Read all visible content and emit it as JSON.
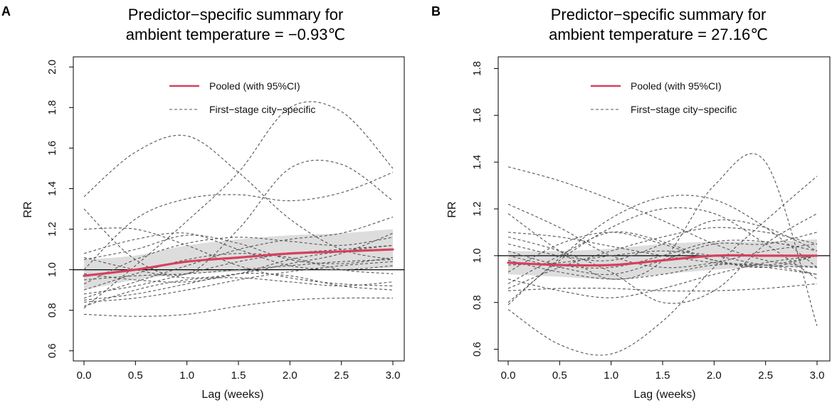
{
  "colors": {
    "pooled": "#d6405e",
    "band": "#d9d9d9",
    "city": "#555555",
    "ref": "#000000"
  },
  "chart_data": [
    {
      "type": "line",
      "panel_label": "A",
      "title_line1": "Predictor−specific summary for",
      "title_line2": "ambient temperature = −0.93℃",
      "xlabel": "Lag (weeks)",
      "ylabel": "RR",
      "xlim": [
        0,
        3
      ],
      "ylim": [
        0.55,
        2.05
      ],
      "xticks": [
        "0.0",
        "0.5",
        "1.0",
        "1.5",
        "2.0",
        "2.5",
        "3.0"
      ],
      "yticks": [
        "0.6",
        "0.8",
        "1.0",
        "1.2",
        "1.4",
        "1.6",
        "1.8",
        "2.0"
      ],
      "reference_line": 1.0,
      "legend": {
        "pooled": "Pooled (with 95%CI)",
        "city": "First−stage city−specific"
      },
      "x": [
        0,
        0.5,
        1,
        1.5,
        2,
        2.5,
        3
      ],
      "pooled": {
        "mean": [
          0.97,
          1.0,
          1.04,
          1.06,
          1.08,
          1.09,
          1.1
        ],
        "lower": [
          0.9,
          0.95,
          0.98,
          0.99,
          1.0,
          1.0,
          1.01
        ],
        "upper": [
          1.05,
          1.07,
          1.12,
          1.15,
          1.17,
          1.18,
          1.2
        ]
      },
      "city_series": [
        [
          1.36,
          1.58,
          1.66,
          1.48,
          1.25,
          1.1,
          1.05
        ],
        [
          0.81,
          1.02,
          1.24,
          1.48,
          1.8,
          1.78,
          1.5
        ],
        [
          1.3,
          1.05,
          0.98,
          1.2,
          1.5,
          1.52,
          1.34
        ],
        [
          1.0,
          1.25,
          1.35,
          1.37,
          1.34,
          1.38,
          1.48
        ],
        [
          1.2,
          1.2,
          1.12,
          1.02,
          0.96,
          0.93,
          0.92
        ],
        [
          1.08,
          1.15,
          1.18,
          1.1,
          1.02,
          1.0,
          1.02
        ],
        [
          1.05,
          1.1,
          1.17,
          1.13,
          1.05,
          1.03,
          1.06
        ],
        [
          0.93,
          1.05,
          1.13,
          1.16,
          1.14,
          1.12,
          1.16
        ],
        [
          0.86,
          0.94,
          1.02,
          1.1,
          1.15,
          1.18,
          1.26
        ],
        [
          0.88,
          0.92,
          0.98,
          1.04,
          1.08,
          1.1,
          1.12
        ],
        [
          0.95,
          0.97,
          0.98,
          1.0,
          1.02,
          1.04,
          1.05
        ],
        [
          0.84,
          0.86,
          0.9,
          0.95,
          0.99,
          1.02,
          1.04
        ],
        [
          0.78,
          0.77,
          0.78,
          0.82,
          0.85,
          0.86,
          0.86
        ],
        [
          0.82,
          0.9,
          0.95,
          0.96,
          0.94,
          0.92,
          0.94
        ],
        [
          1.06,
          1.0,
          0.96,
          0.98,
          1.03,
          1.08,
          1.18
        ],
        [
          0.98,
          0.95,
          0.94,
          0.98,
          1.05,
          1.09,
          1.12
        ],
        [
          0.9,
          0.98,
          1.05,
          1.08,
          1.06,
          1.0,
          0.98
        ],
        [
          0.85,
          0.88,
          0.93,
          0.98,
          0.97,
          0.92,
          0.9
        ]
      ]
    },
    {
      "type": "line",
      "panel_label": "B",
      "title_line1": "Predictor−specific summary for",
      "title_line2": "ambient temperature = 27.16℃",
      "xlabel": "Lag (weeks)",
      "ylabel": "RR",
      "xlim": [
        0,
        3
      ],
      "ylim": [
        0.55,
        1.85
      ],
      "xticks": [
        "0.0",
        "0.5",
        "1.0",
        "1.5",
        "2.0",
        "2.5",
        "3.0"
      ],
      "yticks": [
        "0.6",
        "0.8",
        "1.0",
        "1.2",
        "1.4",
        "1.6",
        "1.8"
      ],
      "reference_line": 1.0,
      "legend": {
        "pooled": "Pooled (with 95%CI)",
        "city": "First−stage city−specific"
      },
      "x": [
        0,
        0.5,
        1,
        1.5,
        2,
        2.5,
        3
      ],
      "pooled": {
        "mean": [
          0.97,
          0.96,
          0.96,
          0.98,
          1.0,
          1.0,
          1.0
        ],
        "lower": [
          0.92,
          0.91,
          0.9,
          0.92,
          0.94,
          0.95,
          0.95
        ],
        "upper": [
          1.02,
          1.02,
          1.03,
          1.05,
          1.06,
          1.06,
          1.07
        ]
      },
      "city_series": [
        [
          1.38,
          1.32,
          1.24,
          1.15,
          1.05,
          0.98,
          0.95
        ],
        [
          0.79,
          0.99,
          1.16,
          1.25,
          1.24,
          1.12,
          0.95
        ],
        [
          0.8,
          0.98,
          1.12,
          1.2,
          1.18,
          1.05,
          0.9
        ],
        [
          1.22,
          1.12,
          1.0,
          0.95,
          0.97,
          1.02,
          1.05
        ],
        [
          1.18,
          1.02,
          0.9,
          0.98,
          1.3,
          1.4,
          0.7
        ],
        [
          0.77,
          0.62,
          0.58,
          0.72,
          0.95,
          1.15,
          1.34
        ],
        [
          0.88,
          1.0,
          1.1,
          1.06,
          0.98,
          0.95,
          1.0
        ],
        [
          1.05,
          1.0,
          0.98,
          1.05,
          1.15,
          1.12,
          1.02
        ],
        [
          0.93,
          1.05,
          1.1,
          1.05,
          0.98,
          0.96,
          1.0
        ],
        [
          1.0,
          0.95,
          0.92,
          0.98,
          1.05,
          1.05,
          1.1
        ],
        [
          0.9,
          0.85,
          0.82,
          0.86,
          0.92,
          0.97,
          1.0
        ],
        [
          1.02,
          0.96,
          0.95,
          1.0,
          1.06,
          1.06,
          1.02
        ],
        [
          0.96,
          0.97,
          1.0,
          1.02,
          1.0,
          0.96,
          0.95
        ],
        [
          0.85,
          0.86,
          0.86,
          0.85,
          0.85,
          0.86,
          0.88
        ],
        [
          1.08,
          1.02,
          0.93,
          0.8,
          0.85,
          1.05,
          1.18
        ],
        [
          0.98,
          0.93,
          0.9,
          0.92,
          0.96,
          0.96,
          0.92
        ],
        [
          1.1,
          1.08,
          1.04,
          1.0,
          0.97,
          0.95,
          0.92
        ],
        [
          0.86,
          0.95,
          1.02,
          1.08,
          1.12,
          1.1,
          1.05
        ]
      ]
    }
  ]
}
